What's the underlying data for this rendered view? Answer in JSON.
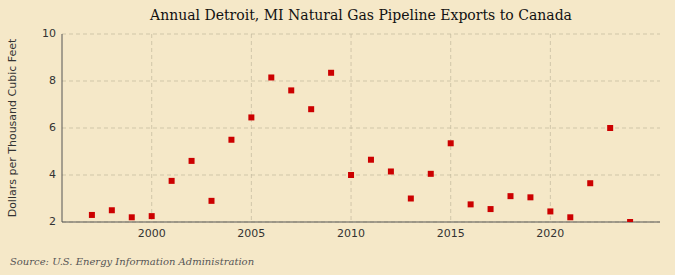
{
  "chart_data": {
    "type": "scatter",
    "title": "Annual Detroit, MI Natural Gas Pipeline Exports to Canada",
    "ylabel": "Dollars per Thousand Cubic Feet",
    "source": "Source: U.S. Energy Information Administration",
    "x": [
      1997,
      1998,
      1999,
      2000,
      2001,
      2002,
      2003,
      2004,
      2005,
      2006,
      2007,
      2008,
      2009,
      2010,
      2011,
      2012,
      2013,
      2014,
      2015,
      2016,
      2017,
      2018,
      2019,
      2020,
      2021,
      2022,
      2023,
      2024
    ],
    "values": [
      2.3,
      2.5,
      2.2,
      2.25,
      3.75,
      4.6,
      2.9,
      5.5,
      6.45,
      8.15,
      7.6,
      6.8,
      8.35,
      4.0,
      4.65,
      4.15,
      3.0,
      4.05,
      5.35,
      2.75,
      2.55,
      3.1,
      3.05,
      2.45,
      2.2,
      3.65,
      6.0,
      2.0
    ],
    "color": "#cc0000",
    "marker": "square",
    "xlim": [
      1995.5,
      2025.5
    ],
    "ylim": [
      2,
      10
    ],
    "xticks": [
      2000,
      2005,
      2010,
      2015,
      2020
    ],
    "yticks": [
      2,
      4,
      6,
      8,
      10
    ],
    "grid": true
  }
}
